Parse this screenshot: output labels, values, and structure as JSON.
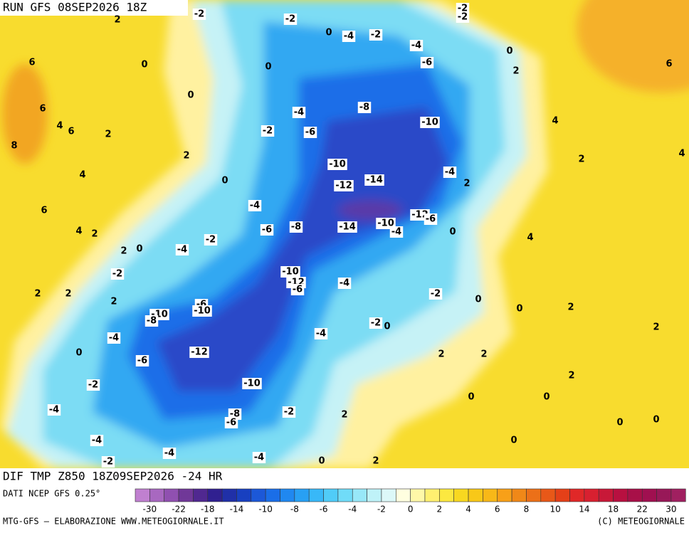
{
  "header": {
    "title": "RUN GFS 08SEP2026 18Z",
    "field": "DIF TMP Z850 18Z09SEP2026 -24 HR"
  },
  "contour_labels": [
    -2,
    2,
    -2,
    0,
    -4,
    -2,
    -2,
    -2,
    -4,
    0,
    -6,
    6,
    0,
    0,
    2,
    6,
    0,
    6,
    -4,
    -8,
    4,
    6,
    2,
    -2,
    -6,
    -10,
    4,
    8,
    2,
    -10,
    -4,
    2,
    4,
    4,
    0,
    -14,
    -12,
    2,
    6,
    -4,
    4,
    2,
    -2,
    -6,
    -8,
    -14,
    -10,
    -4,
    -12,
    -6,
    0,
    4,
    2,
    0,
    -4,
    -2,
    -10,
    -12,
    -6,
    -4,
    2,
    2,
    2,
    -6,
    -10,
    -10,
    -8,
    -2,
    0,
    0,
    2,
    -4,
    -2,
    0,
    2,
    -4,
    0,
    -12,
    -6,
    2,
    2,
    2,
    -2,
    -10,
    0,
    0,
    -4,
    -8,
    -6,
    -2,
    2,
    0,
    0,
    -4,
    0,
    -4,
    -4,
    -2,
    0,
    2
  ],
  "colorbar": {
    "source": "DATI NCEP GFS 0.25°",
    "ticks": [
      -30,
      -22,
      -18,
      -14,
      -10,
      -8,
      -6,
      -4,
      -2,
      0,
      2,
      4,
      6,
      8,
      10,
      14,
      18,
      22,
      30
    ]
  },
  "footer": {
    "left": "MTG-GFS — ELABORAZIONE WWW.METEOGIORNALE.IT",
    "right": "(C) METEOGIORNALE"
  }
}
